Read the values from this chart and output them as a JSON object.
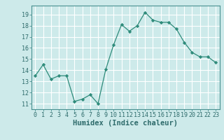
{
  "x": [
    0,
    1,
    2,
    3,
    4,
    5,
    6,
    7,
    8,
    9,
    10,
    11,
    12,
    13,
    14,
    15,
    16,
    17,
    18,
    19,
    20,
    21,
    22,
    23
  ],
  "y": [
    13.5,
    14.5,
    13.2,
    13.5,
    13.5,
    11.2,
    11.4,
    11.8,
    11.0,
    14.1,
    16.3,
    18.1,
    17.5,
    18.0,
    19.2,
    18.5,
    18.3,
    18.3,
    17.7,
    16.5,
    15.6,
    15.2,
    15.2,
    14.7
  ],
  "line_color": "#2e8b7a",
  "marker": "D",
  "marker_size": 2.2,
  "bg_color": "#cdeaea",
  "grid_color": "#b8d8d8",
  "xlabel": "Humidex (Indice chaleur)",
  "ylim": [
    10.5,
    19.8
  ],
  "xlim": [
    -0.5,
    23.5
  ],
  "yticks": [
    11,
    12,
    13,
    14,
    15,
    16,
    17,
    18,
    19
  ],
  "xticks": [
    0,
    1,
    2,
    3,
    4,
    5,
    6,
    7,
    8,
    9,
    10,
    11,
    12,
    13,
    14,
    15,
    16,
    17,
    18,
    19,
    20,
    21,
    22,
    23
  ],
  "tick_fontsize": 6.0,
  "xlabel_fontsize": 7.5
}
